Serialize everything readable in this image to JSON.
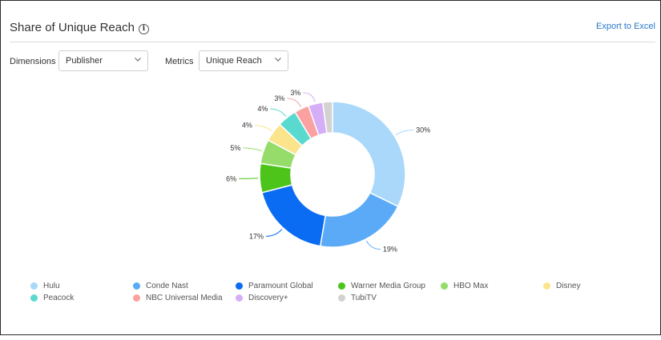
{
  "header": {
    "title": "Share of Unique Reach",
    "info_icon": "info-icon",
    "export_label": "Export to Excel"
  },
  "controls": {
    "dimensions_label": "Dimensions",
    "dimensions_value": "Publisher",
    "metrics_label": "Metrics",
    "metrics_value": "Unique Reach"
  },
  "chart_data": {
    "type": "pie",
    "donut": true,
    "legend_position": "bottom",
    "slices": [
      {
        "name": "Hulu",
        "value": 30,
        "label": "30%",
        "color": "#a9d8fb"
      },
      {
        "name": "Conde Nast",
        "value": 19,
        "label": "19%",
        "color": "#5aaaf7"
      },
      {
        "name": "Paramount Global",
        "value": 17,
        "label": "17%",
        "color": "#0a6cf2"
      },
      {
        "name": "Warner Media Group",
        "value": 6,
        "label": "6%",
        "color": "#4cc41a"
      },
      {
        "name": "HBO Max",
        "value": 5,
        "label": "5%",
        "color": "#95dc6b"
      },
      {
        "name": "Disney",
        "value": 4,
        "label": "4%",
        "color": "#fbe48c"
      },
      {
        "name": "Peacock",
        "value": 4,
        "label": "4%",
        "color": "#5ad9cf"
      },
      {
        "name": "NBC Universal Media",
        "value": 3,
        "label": "3%",
        "color": "#fba1a1"
      },
      {
        "name": "Discovery+",
        "value": 3,
        "label": "3%",
        "color": "#d6aef7"
      },
      {
        "name": "TubiTV",
        "value": 2,
        "label": "",
        "color": "#d2d2d2"
      }
    ]
  }
}
